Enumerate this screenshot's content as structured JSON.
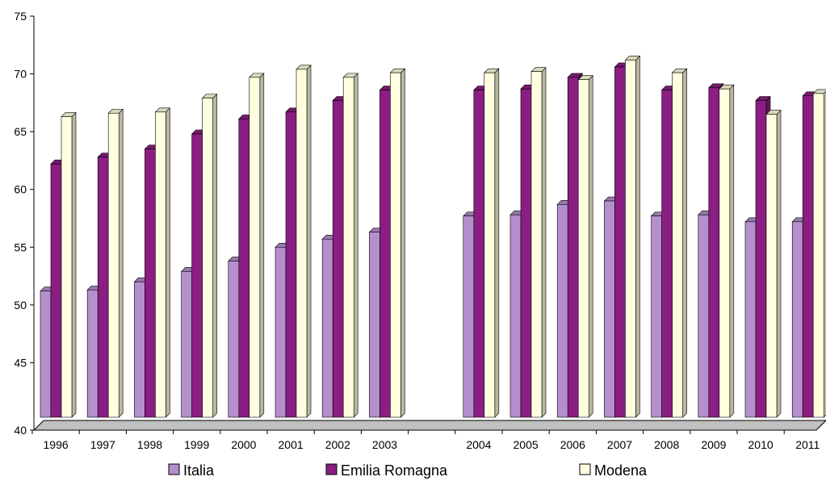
{
  "chart_data": {
    "type": "bar",
    "title": "",
    "xlabel": "",
    "ylabel": "",
    "ylim": [
      40,
      75
    ],
    "yticks": [
      40,
      45,
      50,
      55,
      60,
      65,
      70,
      75
    ],
    "grid": false,
    "legend_position": "bottom",
    "categories": [
      "1996",
      "1997",
      "1998",
      "1999",
      "2000",
      "2001",
      "2002",
      "2003",
      "",
      "2004",
      "2005",
      "2006",
      "2007",
      "2008",
      "2009",
      "2010",
      "2011"
    ],
    "series": [
      {
        "name": "Italia",
        "color": "#b48fcc",
        "values": [
          51.2,
          51.3,
          52.0,
          52.9,
          53.8,
          55.0,
          55.7,
          56.3,
          null,
          57.7,
          57.8,
          58.7,
          59.0,
          57.7,
          57.8,
          57.2,
          57.2
        ]
      },
      {
        "name": "Emilia Romagna",
        "color": "#8b1e82",
        "values": [
          62.2,
          62.8,
          63.5,
          64.8,
          66.1,
          66.7,
          67.7,
          68.6,
          null,
          68.6,
          68.7,
          69.7,
          70.6,
          68.6,
          68.8,
          67.7,
          68.1
        ]
      },
      {
        "name": "Modena",
        "color": "#ffffe0",
        "values": [
          66.3,
          66.6,
          66.7,
          67.9,
          69.7,
          70.4,
          69.7,
          70.1,
          null,
          70.1,
          70.2,
          69.5,
          71.2,
          70.1,
          68.7,
          66.5,
          68.3
        ]
      }
    ]
  }
}
